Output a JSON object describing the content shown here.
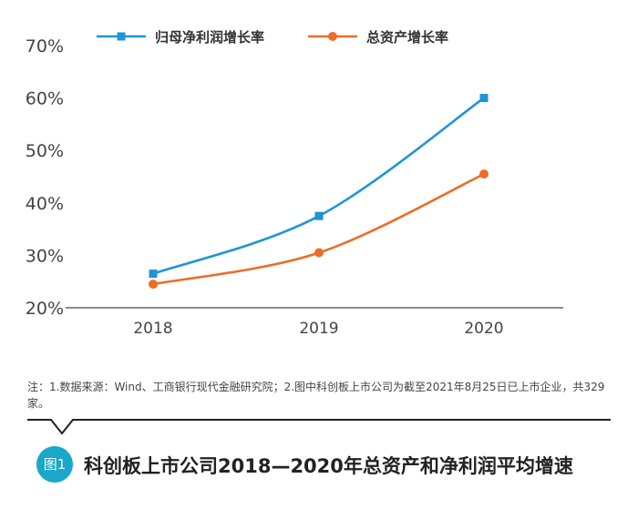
{
  "chart_data": {
    "type": "line",
    "categories": [
      "2018",
      "2019",
      "2020"
    ],
    "ylim": [
      20,
      70
    ],
    "yticks": [
      "20%",
      "30%",
      "40%",
      "50%",
      "60%",
      "70%"
    ],
    "ytick_values": [
      20,
      30,
      40,
      50,
      60,
      70
    ],
    "legend_position": "top",
    "grid": false,
    "series": [
      {
        "name": "归母净利润增长率",
        "values": [
          26.5,
          37.5,
          60
        ],
        "color": "#1f95d6",
        "marker": "square"
      },
      {
        "name": "总资产增长率",
        "values": [
          24.5,
          30.5,
          45.5
        ],
        "color": "#ec6d26",
        "marker": "circle"
      }
    ]
  },
  "note": "注：1.数据来源：Wind、工商银行现代金融研究院；2.图中科创板上市公司为截至2021年8月25日已上市企业，共329家。",
  "figure": {
    "badge": "图1",
    "title": "科创板上市公司2018—2020年总资产和净利润平均增速",
    "badge_color": "#1aa7c9"
  }
}
